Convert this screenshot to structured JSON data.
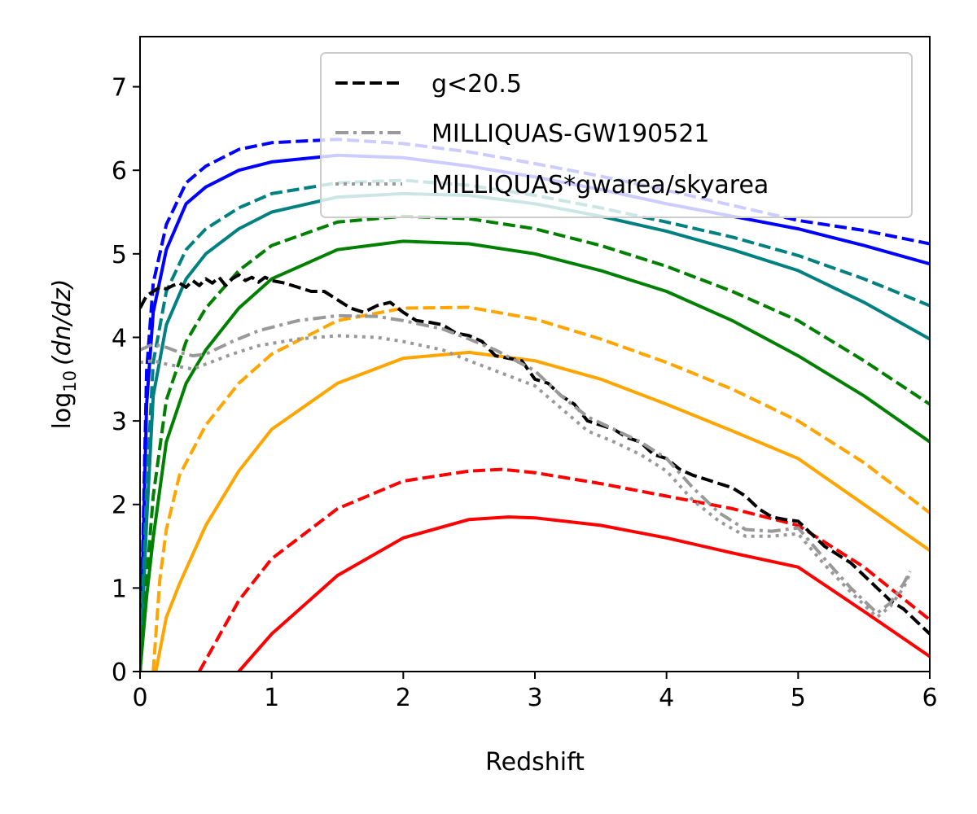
{
  "chart_data": {
    "type": "line",
    "xlabel": "Redshift",
    "ylabel": {
      "base": "log",
      "sub": "10",
      "expr": "(dn/dz)"
    },
    "xlim": [
      0,
      6
    ],
    "ylim": [
      0,
      7.6
    ],
    "x_ticks": [
      "0",
      "1",
      "2",
      "3",
      "4",
      "5",
      "6"
    ],
    "y_ticks": [
      "0",
      "1",
      "2",
      "3",
      "4",
      "5",
      "6",
      "7"
    ],
    "grid": false,
    "legend_position": "top-right",
    "legend": [
      {
        "label": "g<20.5",
        "color": "#000000",
        "style": "dashed"
      },
      {
        "label": "MILLIQUAS-GW190521",
        "color": "#999999",
        "style": "dashdot"
      },
      {
        "label": "MILLIQUAS*gwarea/skyarea",
        "color": "#999999",
        "style": "dotted"
      }
    ],
    "series": [
      {
        "color": "#0000ff",
        "style": "dashed",
        "x": [
          0,
          0.05,
          0.1,
          0.2,
          0.35,
          0.5,
          0.75,
          1.0,
          1.5,
          2.0,
          2.5,
          3.0,
          3.5,
          4.0,
          4.5,
          5.0,
          5.5,
          6.0
        ],
        "y": [
          0,
          3.6,
          4.65,
          5.35,
          5.85,
          6.05,
          6.25,
          6.33,
          6.37,
          6.32,
          6.22,
          6.08,
          5.93,
          5.76,
          5.58,
          5.4,
          5.28,
          5.12
        ]
      },
      {
        "color": "#0000ff",
        "style": "solid",
        "x": [
          0,
          0.05,
          0.1,
          0.2,
          0.35,
          0.5,
          0.75,
          1.0,
          1.5,
          2.0,
          2.5,
          3.0,
          3.5,
          4.0,
          4.5,
          5.0,
          5.5,
          6.0
        ],
        "y": [
          0,
          3.2,
          4.3,
          5.05,
          5.6,
          5.8,
          6.0,
          6.1,
          6.18,
          6.15,
          6.05,
          5.92,
          5.77,
          5.6,
          5.45,
          5.3,
          5.1,
          4.88
        ]
      },
      {
        "color": "#008080",
        "style": "dashed",
        "x": [
          0,
          0.05,
          0.1,
          0.2,
          0.35,
          0.5,
          0.75,
          1.0,
          1.5,
          2.0,
          2.5,
          3.0,
          3.5,
          4.0,
          4.5,
          5.0,
          5.5,
          6.0
        ],
        "y": [
          0,
          2.2,
          3.7,
          4.55,
          5.05,
          5.3,
          5.55,
          5.72,
          5.85,
          5.88,
          5.82,
          5.7,
          5.55,
          5.38,
          5.2,
          4.98,
          4.7,
          4.38
        ]
      },
      {
        "color": "#008080",
        "style": "solid",
        "x": [
          0,
          0.05,
          0.1,
          0.2,
          0.35,
          0.5,
          0.75,
          1.0,
          1.5,
          2.0,
          2.5,
          3.0,
          3.5,
          4.0,
          4.5,
          5.0,
          5.5,
          6.0
        ],
        "y": [
          0,
          1.8,
          3.3,
          4.15,
          4.7,
          5.0,
          5.3,
          5.5,
          5.68,
          5.72,
          5.7,
          5.6,
          5.45,
          5.27,
          5.05,
          4.8,
          4.42,
          3.98
        ]
      },
      {
        "color": "#008000",
        "style": "dashed",
        "x": [
          0,
          0.05,
          0.1,
          0.2,
          0.35,
          0.5,
          0.75,
          1.0,
          1.5,
          2.0,
          2.5,
          3.0,
          3.5,
          4.0,
          4.5,
          5.0,
          5.5,
          6.0
        ],
        "y": [
          0,
          1.1,
          2.1,
          3.25,
          3.95,
          4.35,
          4.8,
          5.1,
          5.38,
          5.45,
          5.42,
          5.3,
          5.1,
          4.85,
          4.55,
          4.2,
          3.72,
          3.2
        ]
      },
      {
        "color": "#008000",
        "style": "solid",
        "x": [
          0,
          0.05,
          0.1,
          0.2,
          0.35,
          0.5,
          0.75,
          1.0,
          1.5,
          2.0,
          2.5,
          3.0,
          3.5,
          4.0,
          4.5,
          5.0,
          5.5,
          6.0
        ],
        "y": [
          0,
          0.9,
          1.6,
          2.75,
          3.45,
          3.85,
          4.35,
          4.7,
          5.05,
          5.15,
          5.12,
          5.0,
          4.8,
          4.55,
          4.2,
          3.78,
          3.3,
          2.75
        ]
      },
      {
        "color": "#ffa500",
        "style": "dashed",
        "x": [
          0.1,
          0.15,
          0.2,
          0.3,
          0.5,
          0.75,
          1.0,
          1.5,
          2.0,
          2.5,
          3.0,
          3.5,
          4.0,
          4.5,
          5.0,
          5.5,
          6.0
        ],
        "y": [
          0,
          1.1,
          1.7,
          2.35,
          2.95,
          3.45,
          3.8,
          4.2,
          4.35,
          4.36,
          4.22,
          3.98,
          3.7,
          3.38,
          3.0,
          2.5,
          1.9
        ]
      },
      {
        "color": "#ffa500",
        "style": "solid",
        "x": [
          0.12,
          0.2,
          0.3,
          0.5,
          0.75,
          1.0,
          1.5,
          2.0,
          2.5,
          3.0,
          3.5,
          4.0,
          4.5,
          5.0,
          5.5,
          6.0
        ],
        "y": [
          0,
          0.65,
          1.05,
          1.75,
          2.4,
          2.9,
          3.45,
          3.75,
          3.82,
          3.72,
          3.5,
          3.2,
          2.88,
          2.55,
          2.0,
          1.45
        ]
      },
      {
        "color": "#ff0000",
        "style": "dashed",
        "x": [
          0.45,
          0.75,
          1.0,
          1.5,
          2.0,
          2.5,
          2.75,
          3.0,
          3.5,
          4.0,
          4.5,
          5.0,
          5.5,
          6.0
        ],
        "y": [
          0,
          0.85,
          1.35,
          1.95,
          2.28,
          2.4,
          2.42,
          2.38,
          2.25,
          2.1,
          1.95,
          1.75,
          1.25,
          0.62
        ]
      },
      {
        "color": "#ff0000",
        "style": "solid",
        "x": [
          0.75,
          1.0,
          1.5,
          2.0,
          2.5,
          2.8,
          3.0,
          3.5,
          4.0,
          4.5,
          5.0,
          5.5,
          6.0
        ],
        "y": [
          0,
          0.45,
          1.15,
          1.6,
          1.82,
          1.85,
          1.84,
          1.75,
          1.6,
          1.42,
          1.25,
          0.72,
          0.18
        ]
      },
      {
        "color": "#000000",
        "style": "dashed",
        "x": [
          0,
          0.05,
          0.1,
          0.15,
          0.2,
          0.25,
          0.3,
          0.35,
          0.4,
          0.45,
          0.5,
          0.55,
          0.6,
          0.65,
          0.7,
          0.75,
          0.8,
          0.85,
          0.9,
          0.95,
          1.0,
          1.1,
          1.2,
          1.3,
          1.4,
          1.5,
          1.6,
          1.7,
          1.8,
          1.9,
          2.0,
          2.1,
          2.2,
          2.3,
          2.4,
          2.5,
          2.6,
          2.7,
          2.8,
          2.9,
          3.0,
          3.1,
          3.2,
          3.3,
          3.4,
          3.5,
          3.6,
          3.7,
          3.8,
          3.9,
          4.0,
          4.1,
          4.2,
          4.3,
          4.4,
          4.5,
          4.6,
          4.7,
          4.8,
          4.9,
          5.0,
          5.1,
          5.2,
          5.3,
          5.4,
          5.5,
          5.6,
          5.7,
          5.8,
          5.9,
          6.0
        ],
        "y": [
          4.35,
          4.5,
          4.55,
          4.6,
          4.58,
          4.62,
          4.65,
          4.6,
          4.68,
          4.62,
          4.7,
          4.65,
          4.72,
          4.62,
          4.7,
          4.75,
          4.68,
          4.72,
          4.66,
          4.72,
          4.68,
          4.65,
          4.6,
          4.55,
          4.55,
          4.45,
          4.35,
          4.3,
          4.38,
          4.42,
          4.3,
          4.2,
          4.18,
          4.15,
          4.05,
          4.02,
          3.95,
          3.78,
          3.75,
          3.72,
          3.5,
          3.45,
          3.3,
          3.2,
          3.0,
          2.95,
          2.9,
          2.8,
          2.75,
          2.6,
          2.55,
          2.42,
          2.35,
          2.3,
          2.25,
          2.2,
          2.1,
          1.95,
          1.85,
          1.82,
          1.8,
          1.65,
          1.5,
          1.4,
          1.3,
          1.15,
          1.0,
          0.85,
          0.75,
          0.6,
          0.45
        ]
      },
      {
        "color": "#999999",
        "style": "dashdot",
        "x": [
          0,
          0.1,
          0.2,
          0.3,
          0.4,
          0.5,
          0.7,
          0.9,
          1.2,
          1.5,
          1.8,
          2.0,
          2.3,
          2.5,
          2.7,
          3.0,
          3.2,
          3.4,
          3.6,
          3.8,
          4.0,
          4.2,
          4.4,
          4.6,
          4.8,
          5.0,
          5.2,
          5.4,
          5.6,
          5.7,
          5.8,
          5.85
        ],
        "y": [
          3.85,
          3.92,
          3.88,
          3.82,
          3.78,
          3.8,
          3.95,
          4.08,
          4.2,
          4.26,
          4.25,
          4.2,
          4.1,
          3.98,
          3.85,
          3.6,
          3.3,
          3.05,
          2.9,
          2.75,
          2.55,
          2.2,
          1.9,
          1.7,
          1.68,
          1.72,
          1.35,
          1.0,
          0.7,
          0.82,
          1.05,
          1.2
        ]
      },
      {
        "color": "#999999",
        "style": "dotted",
        "x": [
          0,
          0.1,
          0.2,
          0.3,
          0.4,
          0.5,
          0.7,
          0.9,
          1.2,
          1.5,
          1.8,
          2.0,
          2.3,
          2.5,
          2.7,
          3.0,
          3.2,
          3.4,
          3.6,
          3.8,
          4.0,
          4.2,
          4.4,
          4.6,
          4.8,
          5.0,
          5.2,
          5.4,
          5.6,
          5.7,
          5.8,
          5.85
        ],
        "y": [
          3.7,
          3.72,
          3.68,
          3.65,
          3.62,
          3.68,
          3.8,
          3.9,
          3.98,
          4.02,
          4.0,
          3.95,
          3.85,
          3.72,
          3.6,
          3.42,
          3.15,
          2.88,
          2.75,
          2.6,
          2.4,
          2.05,
          1.8,
          1.62,
          1.62,
          1.65,
          1.28,
          0.95,
          0.65,
          0.78,
          1.0,
          1.18
        ]
      }
    ]
  }
}
